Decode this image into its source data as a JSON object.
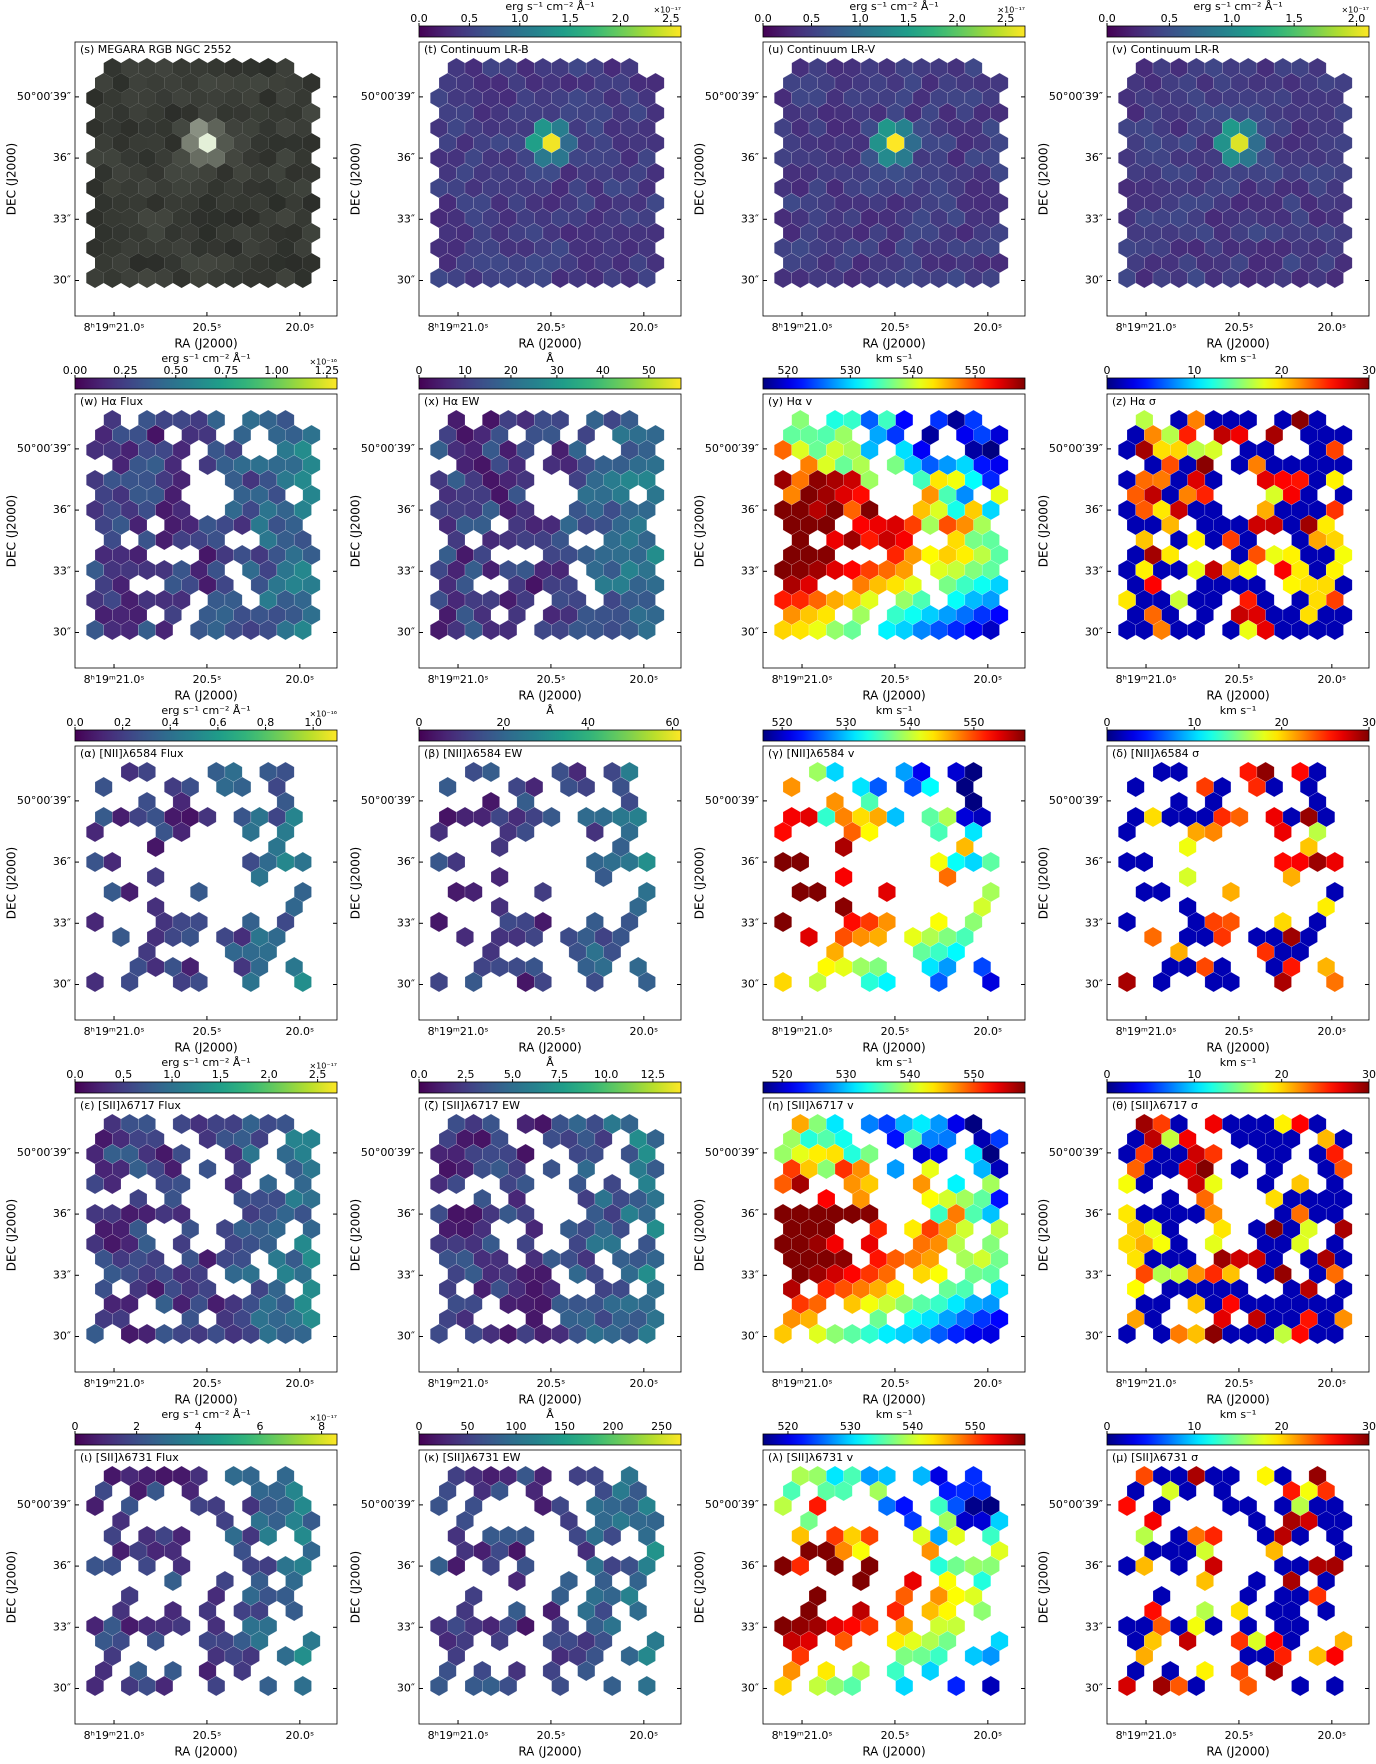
{
  "axes": {
    "x_label": "RA (J2000)",
    "y_label": "DEC (J2000)",
    "xlim": [
      21.21,
      19.8
    ],
    "ylim": [
      28.26,
      41.69
    ],
    "xticks": [
      {
        "value": 21.0,
        "label": "8ʰ19ᵐ21.0ˢ"
      },
      {
        "value": 20.5,
        "label": "20.5ˢ"
      },
      {
        "value": 20.0,
        "label": "20.0ˢ"
      }
    ],
    "yticks": [
      {
        "value": 39,
        "label": "50°00′39″"
      },
      {
        "value": 36,
        "label": "36″"
      },
      {
        "value": 33,
        "label": "33″"
      },
      {
        "value": 30,
        "label": "30″"
      }
    ]
  },
  "panels": [
    {
      "label": "(s) MEGARA RGB NGC 2552",
      "kind": "rgb"
    },
    {
      "label": "(t) Continuum LR-B",
      "kind": "continuum",
      "cmap": "viridis",
      "cbar_label": "erg s⁻¹ cm⁻² Å⁻¹",
      "cbar_offset": "×10⁻¹⁷",
      "clim": [
        0,
        2.6
      ],
      "cticks": [
        {
          "value": 0,
          "label": "0.0"
        },
        0.5,
        {
          "value": 1,
          "label": "1.0"
        },
        1.5,
        {
          "value": 2,
          "label": "2.0"
        },
        2.5
      ]
    },
    {
      "label": "(u) Continuum LR-V",
      "kind": "continuum",
      "cmap": "viridis",
      "cbar_label": "erg s⁻¹ cm⁻² Å⁻¹",
      "cbar_offset": "×10⁻¹⁷",
      "clim": [
        0,
        2.7
      ],
      "cticks": [
        {
          "value": 0,
          "label": "0.0"
        },
        0.5,
        {
          "value": 1,
          "label": "1.0"
        },
        1.5,
        {
          "value": 2,
          "label": "2.0"
        },
        2.5
      ]
    },
    {
      "label": "(v) Continuum LR-R",
      "kind": "continuum",
      "cmap": "viridis",
      "cbar_label": "erg s⁻¹ cm⁻² Å⁻¹",
      "cbar_offset": "×10⁻¹⁷",
      "clim": [
        0,
        2.1
      ],
      "cticks": [
        {
          "value": 0,
          "label": "0.0"
        },
        0.5,
        {
          "value": 1,
          "label": "1.0"
        },
        1.5,
        {
          "value": 2,
          "label": "2.0"
        }
      ]
    },
    {
      "label": "(w) Hα Flux",
      "kind": "flux",
      "cmap": "viridis",
      "cbar_label": "erg s⁻¹ cm⁻² Å⁻¹",
      "cbar_offset": "×10⁻¹⁶",
      "clim": [
        0,
        1.3
      ],
      "cticks": [
        {
          "value": 0,
          "label": "0.00"
        },
        0.25,
        {
          "value": 0.5,
          "label": "0.50"
        },
        0.75,
        {
          "value": 1,
          "label": "1.00"
        },
        1.25
      ]
    },
    {
      "label": "(x) Hα EW",
      "kind": "flux",
      "cmap": "viridis",
      "cbar_label": "Å",
      "clim": [
        0,
        57
      ],
      "cticks": [
        0,
        10,
        20,
        30,
        40,
        50
      ]
    },
    {
      "label": "(y) Hα v",
      "kind": "vel",
      "cmap": "jet",
      "cbar_label": "km s⁻¹",
      "clim": [
        516,
        558
      ],
      "cticks": [
        520,
        530,
        540,
        550
      ]
    },
    {
      "label": "(z) Hα σ",
      "kind": "sigma",
      "cmap": "jet",
      "cbar_label": "km s⁻¹",
      "clim": [
        0,
        30
      ],
      "cticks": [
        0,
        10,
        20,
        30
      ]
    },
    {
      "label": "(α) [NII]λ6584 Flux",
      "kind": "flux",
      "cmap": "viridis",
      "cbar_label": "erg s⁻¹ cm⁻² Å⁻¹",
      "cbar_offset": "×10⁻¹⁶",
      "clim": [
        0,
        1.1
      ],
      "cticks": [
        {
          "value": 0,
          "label": "0.0"
        },
        0.2,
        0.4,
        0.6,
        0.8,
        {
          "value": 1,
          "label": "1.0"
        }
      ]
    },
    {
      "label": "(β) [NII]λ6584 EW",
      "kind": "flux",
      "cmap": "viridis",
      "cbar_label": "Å",
      "clim": [
        0,
        62
      ],
      "cticks": [
        0,
        20,
        40,
        60
      ]
    },
    {
      "label": "(γ) [NII]λ6584 v",
      "kind": "vel",
      "cmap": "jet",
      "cbar_label": "km s⁻¹",
      "clim": [
        517,
        558
      ],
      "cticks": [
        520,
        530,
        540,
        550
      ]
    },
    {
      "label": "(δ) [NII]λ6584 σ",
      "kind": "sigma",
      "cmap": "jet",
      "cbar_label": "km s⁻¹",
      "clim": [
        0,
        30
      ],
      "cticks": [
        0,
        10,
        20,
        30
      ]
    },
    {
      "label": "(ε) [SII]λ6717 Flux",
      "kind": "flux",
      "cmap": "viridis",
      "cbar_label": "erg s⁻¹ cm⁻² Å⁻¹",
      "cbar_offset": "×10⁻¹⁷",
      "clim": [
        0,
        2.7
      ],
      "cticks": [
        {
          "value": 0,
          "label": "0.0"
        },
        0.5,
        {
          "value": 1,
          "label": "1.0"
        },
        1.5,
        {
          "value": 2,
          "label": "2.0"
        },
        2.5
      ]
    },
    {
      "label": "(ζ) [SII]λ6717 EW",
      "kind": "flux",
      "cmap": "viridis",
      "cbar_label": "Å",
      "clim": [
        0,
        14
      ],
      "cticks": [
        {
          "value": 0,
          "label": "0.0"
        },
        2.5,
        {
          "value": 5,
          "label": "5.0"
        },
        7.5,
        {
          "value": 10,
          "label": "10.0"
        },
        12.5
      ]
    },
    {
      "label": "(η) [SII]λ6717 v",
      "kind": "vel",
      "cmap": "jet",
      "cbar_label": "km s⁻¹",
      "clim": [
        517,
        558
      ],
      "cticks": [
        520,
        530,
        540,
        550
      ]
    },
    {
      "label": "(θ) [SII]λ6717 σ",
      "kind": "sigma",
      "cmap": "jet",
      "cbar_label": "km s⁻¹",
      "clim": [
        0,
        30
      ],
      "cticks": [
        0,
        10,
        20,
        30
      ]
    },
    {
      "label": "(ι) [SII]λ6731 Flux",
      "kind": "flux",
      "cmap": "viridis",
      "cbar_label": "erg s⁻¹ cm⁻² Å⁻¹",
      "cbar_offset": "×10⁻¹⁷",
      "clim": [
        0,
        8.5
      ],
      "cticks": [
        0,
        2,
        4,
        6,
        8
      ]
    },
    {
      "label": "(κ) [SII]λ6731 EW",
      "kind": "flux",
      "cmap": "viridis",
      "cbar_label": "Å",
      "clim": [
        0,
        270
      ],
      "cticks": [
        0,
        50,
        100,
        150,
        200,
        250
      ]
    },
    {
      "label": "(λ) [SII]λ6731 v",
      "kind": "vel",
      "cmap": "jet",
      "cbar_label": "km s⁻¹",
      "clim": [
        516,
        558
      ],
      "cticks": [
        520,
        530,
        540,
        550
      ]
    },
    {
      "label": "(μ) [SII]λ6731 σ",
      "kind": "sigma",
      "cmap": "jet",
      "cbar_label": "km s⁻¹",
      "clim": [
        0,
        30
      ],
      "cticks": [
        0,
        10,
        20,
        30
      ]
    }
  ]
}
